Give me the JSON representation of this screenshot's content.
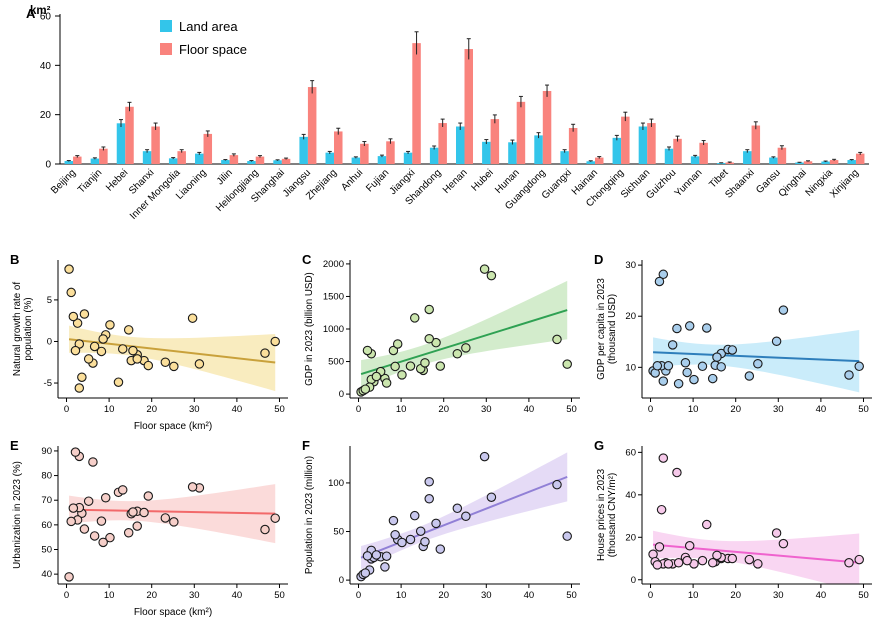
{
  "panels": {
    "A": "A",
    "B": "B",
    "C": "C",
    "D": "D",
    "E": "E",
    "F": "F",
    "G": "G"
  },
  "chart_data": [
    {
      "panel": "a",
      "type": "bar",
      "ylabel": "km²",
      "ylim": [
        0,
        60
      ],
      "yticks": [
        0,
        20,
        40,
        60
      ],
      "legend": [
        {
          "label": "Land area",
          "color": "#33C5EA"
        },
        {
          "label": "Floor space",
          "color": "#F9837D"
        }
      ],
      "categories": [
        "Beijing",
        "Tianjin",
        "Hebei",
        "Shanxi",
        "Inner Mongolia",
        "Liaoning",
        "Jilin",
        "Heilongjiang",
        "Shanghai",
        "Jiangsu",
        "Zhejiang",
        "Anhui",
        "Fujian",
        "Jiangxi",
        "Shandong",
        "Henan",
        "Hubei",
        "Hunan",
        "Guangdong",
        "Guangxi",
        "Hainan",
        "Chongqing",
        "Sichuan",
        "Guizhou",
        "Yunnan",
        "Tibet",
        "Shaanxi",
        "Gansu",
        "Qinghai",
        "Ningxia",
        "Xinjiang"
      ],
      "series": [
        {
          "name": "Land area",
          "color": "#33C5EA",
          "values": [
            1.2,
            2.2,
            16.5,
            5.2,
            2.3,
            4.2,
            1.6,
            1.2,
            1.5,
            11.0,
            4.6,
            2.6,
            3.2,
            4.6,
            6.6,
            15.2,
            9.0,
            8.8,
            11.6,
            5.2,
            1.1,
            10.6,
            15.2,
            6.2,
            3.1,
            0.4,
            5.2,
            2.6,
            0.6,
            1.0,
            1.6
          ],
          "errors": [
            0.2,
            0.3,
            1.5,
            0.6,
            0.3,
            0.5,
            0.2,
            0.2,
            0.2,
            1.0,
            0.5,
            0.3,
            0.4,
            0.5,
            0.7,
            1.4,
            0.9,
            0.9,
            1.1,
            0.6,
            0.2,
            1.0,
            1.4,
            0.7,
            0.4,
            0.1,
            0.6,
            0.3,
            0.1,
            0.2,
            0.2
          ]
        },
        {
          "name": "Floor space",
          "color": "#F9837D",
          "values": [
            3.0,
            6.2,
            23.2,
            15.2,
            5.2,
            12.2,
            3.6,
            3.0,
            2.1,
            31.2,
            13.2,
            8.2,
            9.2,
            49.0,
            16.6,
            46.6,
            18.2,
            25.2,
            29.6,
            14.6,
            2.6,
            19.2,
            16.6,
            10.2,
            8.6,
            0.6,
            15.6,
            6.6,
            1.1,
            1.6,
            4.2
          ],
          "errors": [
            0.4,
            0.7,
            1.8,
            1.4,
            0.6,
            1.2,
            0.5,
            0.4,
            0.3,
            2.6,
            1.3,
            0.9,
            1.0,
            4.6,
            1.6,
            4.2,
            1.7,
            2.2,
            2.4,
            1.5,
            0.4,
            1.8,
            1.6,
            1.1,
            0.9,
            0.2,
            1.5,
            0.8,
            0.2,
            0.3,
            0.5
          ]
        }
      ]
    },
    {
      "panel": "b",
      "type": "scatter",
      "xlabel": "Floor space (km²)",
      "ylabel": [
        "Natural growth rate of",
        "population (%)"
      ],
      "xlim": [
        -2,
        52
      ],
      "xticks": [
        0,
        10,
        20,
        30,
        40,
        50
      ],
      "ylim": [
        -6.8,
        9.8
      ],
      "yticks": [
        -5,
        0,
        5
      ],
      "colors": {
        "point": "#FBDF9B",
        "line": "#C9A13B",
        "band": "#F3D97F",
        "band_opacity": 0.5
      },
      "x": [
        3.0,
        6.2,
        23.2,
        15.2,
        5.2,
        12.2,
        3.6,
        3.0,
        2.1,
        31.2,
        13.2,
        8.2,
        9.2,
        49.0,
        16.6,
        46.6,
        18.2,
        25.2,
        29.6,
        14.6,
        2.6,
        19.2,
        16.6,
        10.2,
        8.6,
        0.6,
        15.6,
        6.6,
        1.1,
        1.6,
        4.2
      ],
      "y": [
        -0.3,
        -2.6,
        -2.5,
        -2.3,
        -2.1,
        -4.9,
        -4.3,
        -5.6,
        -1.1,
        -2.7,
        -0.9,
        -1.2,
        0.8,
        0.0,
        -1.6,
        -1.4,
        -2.3,
        -3.0,
        2.8,
        1.4,
        2.2,
        -2.9,
        -2.1,
        2.0,
        0.3,
        8.7,
        -1.1,
        -0.6,
        5.9,
        3.0,
        3.3
      ],
      "regression": true,
      "confidence_band": true
    },
    {
      "panel": "c",
      "type": "scatter",
      "xlabel": "",
      "ylabel": "GDP in 2023 (billion USD)",
      "xlim": [
        -2,
        52
      ],
      "xticks": [
        0,
        10,
        20,
        30,
        40,
        50
      ],
      "ylim": [
        -60,
        2060
      ],
      "yticks": [
        0,
        500,
        1000,
        1500,
        2000
      ],
      "colors": {
        "point": "#CBE6AE",
        "line": "#2FA153",
        "band": "#A8D99A",
        "band_opacity": 0.5
      },
      "x": [
        3.0,
        6.2,
        23.2,
        15.2,
        5.2,
        12.2,
        3.6,
        3.0,
        2.1,
        31.2,
        13.2,
        8.2,
        9.2,
        49.0,
        16.6,
        46.6,
        18.2,
        25.2,
        29.6,
        14.6,
        2.6,
        19.2,
        16.6,
        10.2,
        8.6,
        0.6,
        15.6,
        6.6,
        1.1,
        1.6,
        4.2
      ],
      "y": [
        620,
        240,
        620,
        365,
        345,
        430,
        190,
        225,
        670,
        1820,
        1170,
        670,
        770,
        460,
        1300,
        840,
        790,
        710,
        1920,
        390,
        107,
        430,
        850,
        295,
        425,
        34,
        480,
        170,
        53,
        75,
        270
      ],
      "regression": true,
      "confidence_band": true
    },
    {
      "panel": "d",
      "type": "scatter",
      "xlabel": "",
      "ylabel": [
        "GDP per capita in 2023",
        "(thousand USD)"
      ],
      "xlim": [
        -2,
        52
      ],
      "xticks": [
        0,
        10,
        20,
        30,
        40,
        50
      ],
      "ylim": [
        4,
        31
      ],
      "yticks": [
        10,
        20,
        30
      ],
      "colors": {
        "point": "#A9CEEC",
        "line": "#2E7EBB",
        "band": "#9FDCF5",
        "band_opacity": 0.55
      },
      "x": [
        3.0,
        6.2,
        23.2,
        15.2,
        5.2,
        12.2,
        3.6,
        3.0,
        2.1,
        31.2,
        13.2,
        8.2,
        9.2,
        49.0,
        16.6,
        46.6,
        18.2,
        25.2,
        29.6,
        14.6,
        2.6,
        19.2,
        16.6,
        10.2,
        8.6,
        0.6,
        15.6,
        6.6,
        1.1,
        1.6,
        4.2
      ],
      "y": [
        28.2,
        17.6,
        8.3,
        10.4,
        14.4,
        10.2,
        9.3,
        7.3,
        26.8,
        21.2,
        17.7,
        10.9,
        18.1,
        10.2,
        12.7,
        8.5,
        13.5,
        10.7,
        15.1,
        7.8,
        10.3,
        13.4,
        10.1,
        7.6,
        9.0,
        9.3,
        12.0,
        6.8,
        8.9,
        10.3,
        10.3
      ],
      "regression": true,
      "confidence_band": true
    },
    {
      "panel": "e",
      "type": "scatter",
      "xlabel": "Floor space (km²)",
      "ylabel": "Urbanization in 2023 (%)",
      "xlim": [
        -2,
        52
      ],
      "xticks": [
        0,
        10,
        20,
        30,
        40,
        50
      ],
      "ylim": [
        36,
        92
      ],
      "yticks": [
        40,
        50,
        60,
        70,
        80,
        90
      ],
      "colors": {
        "point": "#F6CFC9",
        "line": "#F2696A",
        "band": "#F8B8B6",
        "band_opacity": 0.5
      },
      "x": [
        3.0,
        6.2,
        23.2,
        15.2,
        5.2,
        12.2,
        3.6,
        3.0,
        2.1,
        31.2,
        13.2,
        8.2,
        9.2,
        49.0,
        16.6,
        46.6,
        18.2,
        25.2,
        29.6,
        14.6,
        2.6,
        19.2,
        16.6,
        10.2,
        8.6,
        0.6,
        15.6,
        6.6,
        1.1,
        1.6,
        4.2
      ],
      "y": [
        87.8,
        85.5,
        62.8,
        64.5,
        69.6,
        73.2,
        64.7,
        67.0,
        89.5,
        75.0,
        74.2,
        61.5,
        71.0,
        62.7,
        65.5,
        58.1,
        65.0,
        61.2,
        75.4,
        56.8,
        62.0,
        71.7,
        59.5,
        54.8,
        52.9,
        38.9,
        65.2,
        55.5,
        61.4,
        66.8,
        58.3
      ],
      "regression": true,
      "confidence_band": true
    },
    {
      "panel": "f",
      "type": "scatter",
      "xlabel": "",
      "ylabel": "Population in 2023 (million)",
      "xlim": [
        -2,
        52
      ],
      "xticks": [
        0,
        10,
        20,
        30,
        40,
        50
      ],
      "ylim": [
        -4,
        138
      ],
      "yticks": [
        0,
        50,
        100
      ],
      "colors": {
        "point": "#C9C8EE",
        "line": "#9180D6",
        "band": "#CBB8EE",
        "band_opacity": 0.5
      },
      "x": [
        3.0,
        6.2,
        23.2,
        15.2,
        5.2,
        12.2,
        3.6,
        3.0,
        2.1,
        31.2,
        13.2,
        8.2,
        9.2,
        49.0,
        16.6,
        46.6,
        18.2,
        25.2,
        29.6,
        14.6,
        2.6,
        19.2,
        16.6,
        10.2,
        8.6,
        0.6,
        15.6,
        6.6,
        1.1,
        1.6,
        4.2
      ],
      "y": [
        21.9,
        13.6,
        73.9,
        34.7,
        24.0,
        41.8,
        23.4,
        30.6,
        24.9,
        85.3,
        66.3,
        61.2,
        41.8,
        45.2,
        101.2,
        98.2,
        58.4,
        65.7,
        127.1,
        50.3,
        10.4,
        31.9,
        83.7,
        38.7,
        46.7,
        3.6,
        39.5,
        24.6,
        5.9,
        7.3,
        25.9
      ],
      "regression": true,
      "confidence_band": true
    },
    {
      "panel": "g",
      "type": "scatter",
      "xlabel": "",
      "ylabel": [
        "House prices in 2023",
        "(thousand CNY/m²)"
      ],
      "xlim": [
        -2,
        52
      ],
      "xticks": [
        0,
        10,
        20,
        30,
        40,
        50
      ],
      "ylim": [
        -2,
        63
      ],
      "yticks": [
        0,
        20,
        40,
        60
      ],
      "colors": {
        "point": "#F6C9EA",
        "line": "#EF63CE",
        "band": "#F4AEE6",
        "band_opacity": 0.5
      },
      "x": [
        3.0,
        6.2,
        23.2,
        15.2,
        5.2,
        12.2,
        3.6,
        3.0,
        2.1,
        31.2,
        13.2,
        8.2,
        9.2,
        49.0,
        16.6,
        46.6,
        18.2,
        25.2,
        29.6,
        14.6,
        2.6,
        19.2,
        16.6,
        10.2,
        8.6,
        0.6,
        15.6,
        6.6,
        1.1,
        1.6,
        4.2
      ],
      "y": [
        57.3,
        50.5,
        9.5,
        8.5,
        7.5,
        9.0,
        8.0,
        7.5,
        15.5,
        17.0,
        26.0,
        10.5,
        16.0,
        9.5,
        10.0,
        8.0,
        10.0,
        7.5,
        22.0,
        8.0,
        33.0,
        10.0,
        10.5,
        7.5,
        9.0,
        12.0,
        11.5,
        8.0,
        8.5,
        7.0,
        7.5
      ],
      "regression": true,
      "confidence_band": true
    }
  ]
}
